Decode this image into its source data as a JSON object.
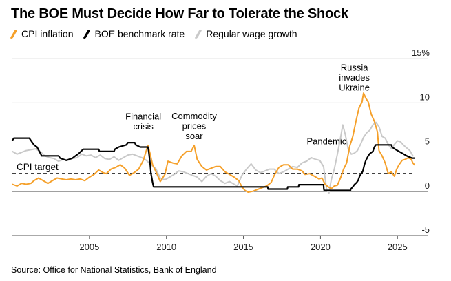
{
  "title": "The BOE Must Decide How Far to Tolerate the Shock",
  "source": "Source: Office for National Statistics, Bank of England",
  "colors": {
    "cpi": "#f5a02a",
    "boe": "#000000",
    "wage": "#c9c9c9",
    "grid": "#e3e3e3"
  },
  "chart_data": {
    "type": "line",
    "title": "The BOE Must Decide How Far to Tolerate the Shock",
    "xlabel": "",
    "ylabel": "",
    "xlim": [
      2000.0,
      2027.0
    ],
    "ylim": [
      -5,
      15
    ],
    "x_ticks": [
      {
        "value": 2005,
        "label": "2005"
      },
      {
        "value": 2010,
        "label": "2010"
      },
      {
        "value": 2015,
        "label": "2015"
      },
      {
        "value": 2020,
        "label": "2020"
      },
      {
        "value": 2025,
        "label": "2025"
      }
    ],
    "y_ticks": [
      {
        "value": 15,
        "label": "15%"
      },
      {
        "value": 10,
        "label": "10"
      },
      {
        "value": 5,
        "label": "5"
      },
      {
        "value": 0,
        "label": "0"
      },
      {
        "value": -5,
        "label": "-5"
      }
    ],
    "legend_position": "top-left",
    "cpi_target": {
      "value": 2,
      "label": "CPI target"
    },
    "annotations": [
      {
        "id": "financial-crisis",
        "lines": [
          "Financial",
          "crisis"
        ],
        "x": 2008.5,
        "y": 7.0
      },
      {
        "id": "commodity-prices",
        "lines": [
          "Commodity",
          "prices",
          "soar"
        ],
        "x": 2011.8,
        "y": 5.9
      },
      {
        "id": "pandemic",
        "lines": [
          "Pandemic"
        ],
        "x": 2020.4,
        "y": 5.3
      },
      {
        "id": "russia-ukraine",
        "lines": [
          "Russia",
          "invades",
          "Ukraine"
        ],
        "x": 2022.2,
        "y": 11.4
      }
    ],
    "series": [
      {
        "name": "CPI inflation",
        "color": "#f5a02a",
        "points": [
          [
            2000.0,
            0.8
          ],
          [
            2000.3,
            0.6
          ],
          [
            2000.6,
            0.9
          ],
          [
            2000.9,
            0.8
          ],
          [
            2001.2,
            0.9
          ],
          [
            2001.4,
            1.2
          ],
          [
            2001.7,
            1.5
          ],
          [
            2002.0,
            1.2
          ],
          [
            2002.3,
            0.9
          ],
          [
            2002.6,
            1.2
          ],
          [
            2002.9,
            1.5
          ],
          [
            2003.2,
            1.4
          ],
          [
            2003.5,
            1.3
          ],
          [
            2003.8,
            1.4
          ],
          [
            2004.1,
            1.3
          ],
          [
            2004.4,
            1.4
          ],
          [
            2004.7,
            1.2
          ],
          [
            2005.0,
            1.6
          ],
          [
            2005.3,
            1.9
          ],
          [
            2005.6,
            2.4
          ],
          [
            2005.9,
            2.1
          ],
          [
            2006.1,
            2.0
          ],
          [
            2006.4,
            2.5
          ],
          [
            2006.7,
            2.7
          ],
          [
            2007.0,
            3.0
          ],
          [
            2007.3,
            2.6
          ],
          [
            2007.6,
            1.8
          ],
          [
            2007.9,
            2.1
          ],
          [
            2008.2,
            2.5
          ],
          [
            2008.5,
            3.5
          ],
          [
            2008.8,
            5.2
          ],
          [
            2008.95,
            4.2
          ],
          [
            2009.1,
            3.0
          ],
          [
            2009.3,
            2.3
          ],
          [
            2009.6,
            1.1
          ],
          [
            2009.9,
            1.9
          ],
          [
            2010.1,
            3.4
          ],
          [
            2010.4,
            3.2
          ],
          [
            2010.7,
            3.1
          ],
          [
            2011.0,
            4.0
          ],
          [
            2011.3,
            4.5
          ],
          [
            2011.6,
            4.5
          ],
          [
            2011.8,
            5.2
          ],
          [
            2012.0,
            3.6
          ],
          [
            2012.3,
            2.8
          ],
          [
            2012.6,
            2.4
          ],
          [
            2012.9,
            2.6
          ],
          [
            2013.2,
            2.8
          ],
          [
            2013.5,
            2.8
          ],
          [
            2013.8,
            2.2
          ],
          [
            2014.1,
            1.9
          ],
          [
            2014.4,
            1.6
          ],
          [
            2014.7,
            1.2
          ],
          [
            2014.9,
            0.5
          ],
          [
            2015.1,
            0.1
          ],
          [
            2015.3,
            -0.1
          ],
          [
            2015.6,
            0.0
          ],
          [
            2015.9,
            0.2
          ],
          [
            2016.2,
            0.4
          ],
          [
            2016.5,
            0.6
          ],
          [
            2016.8,
            1.0
          ],
          [
            2017.0,
            1.8
          ],
          [
            2017.3,
            2.7
          ],
          [
            2017.6,
            3.0
          ],
          [
            2017.9,
            3.0
          ],
          [
            2018.2,
            2.5
          ],
          [
            2018.5,
            2.5
          ],
          [
            2018.8,
            2.3
          ],
          [
            2019.0,
            1.9
          ],
          [
            2019.3,
            2.0
          ],
          [
            2019.6,
            1.7
          ],
          [
            2019.9,
            1.4
          ],
          [
            2020.1,
            1.5
          ],
          [
            2020.3,
            0.8
          ],
          [
            2020.5,
            0.5
          ],
          [
            2020.7,
            0.3
          ],
          [
            2020.9,
            0.6
          ],
          [
            2021.1,
            0.7
          ],
          [
            2021.3,
            1.5
          ],
          [
            2021.5,
            2.5
          ],
          [
            2021.7,
            3.2
          ],
          [
            2021.9,
            5.1
          ],
          [
            2022.1,
            6.2
          ],
          [
            2022.3,
            7.9
          ],
          [
            2022.5,
            9.4
          ],
          [
            2022.7,
            10.1
          ],
          [
            2022.8,
            11.1
          ],
          [
            2022.95,
            10.5
          ],
          [
            2023.1,
            10.1
          ],
          [
            2023.3,
            8.7
          ],
          [
            2023.5,
            7.9
          ],
          [
            2023.7,
            6.7
          ],
          [
            2023.8,
            4.6
          ],
          [
            2024.0,
            4.0
          ],
          [
            2024.2,
            3.2
          ],
          [
            2024.4,
            2.0
          ],
          [
            2024.6,
            2.2
          ],
          [
            2024.8,
            1.7
          ],
          [
            2024.95,
            2.5
          ],
          [
            2025.1,
            3.0
          ],
          [
            2025.3,
            3.5
          ],
          [
            2025.5,
            3.6
          ],
          [
            2025.7,
            3.8
          ],
          [
            2025.9,
            3.6
          ],
          [
            2026.0,
            3.2
          ],
          [
            2026.1,
            3.0
          ]
        ]
      },
      {
        "name": "BOE benchmark rate",
        "color": "#000000",
        "points": [
          [
            2000.0,
            5.75
          ],
          [
            2000.1,
            6.0
          ],
          [
            2001.1,
            6.0
          ],
          [
            2001.2,
            5.75
          ],
          [
            2001.4,
            5.25
          ],
          [
            2001.6,
            5.0
          ],
          [
            2001.9,
            4.0
          ],
          [
            2003.0,
            4.0
          ],
          [
            2003.1,
            3.75
          ],
          [
            2003.5,
            3.5
          ],
          [
            2003.9,
            3.75
          ],
          [
            2004.1,
            4.0
          ],
          [
            2004.3,
            4.25
          ],
          [
            2004.45,
            4.5
          ],
          [
            2004.6,
            4.75
          ],
          [
            2005.6,
            4.75
          ],
          [
            2005.65,
            4.5
          ],
          [
            2006.6,
            4.5
          ],
          [
            2006.65,
            4.75
          ],
          [
            2006.9,
            5.0
          ],
          [
            2007.4,
            5.25
          ],
          [
            2007.5,
            5.5
          ],
          [
            2007.95,
            5.5
          ],
          [
            2008.0,
            5.25
          ],
          [
            2008.3,
            5.0
          ],
          [
            2008.8,
            5.0
          ],
          [
            2008.85,
            4.5
          ],
          [
            2008.95,
            3.0
          ],
          [
            2009.0,
            2.0
          ],
          [
            2009.05,
            1.5
          ],
          [
            2009.1,
            1.0
          ],
          [
            2009.17,
            0.5
          ],
          [
            2016.58,
            0.5
          ],
          [
            2016.6,
            0.25
          ],
          [
            2017.85,
            0.25
          ],
          [
            2017.87,
            0.5
          ],
          [
            2018.58,
            0.5
          ],
          [
            2018.6,
            0.75
          ],
          [
            2020.2,
            0.75
          ],
          [
            2020.22,
            0.25
          ],
          [
            2020.24,
            0.1
          ],
          [
            2021.95,
            0.1
          ],
          [
            2021.97,
            0.25
          ],
          [
            2022.1,
            0.5
          ],
          [
            2022.2,
            0.75
          ],
          [
            2022.35,
            1.0
          ],
          [
            2022.45,
            1.25
          ],
          [
            2022.55,
            1.75
          ],
          [
            2022.75,
            2.25
          ],
          [
            2022.85,
            3.0
          ],
          [
            2022.95,
            3.5
          ],
          [
            2023.1,
            4.0
          ],
          [
            2023.2,
            4.25
          ],
          [
            2023.4,
            4.5
          ],
          [
            2023.5,
            5.0
          ],
          [
            2023.6,
            5.25
          ],
          [
            2024.6,
            5.25
          ],
          [
            2024.65,
            5.0
          ],
          [
            2024.85,
            4.75
          ],
          [
            2025.1,
            4.5
          ],
          [
            2025.35,
            4.25
          ],
          [
            2025.6,
            4.0
          ],
          [
            2025.95,
            3.75
          ],
          [
            2026.1,
            3.75
          ]
        ]
      },
      {
        "name": "Regular wage growth",
        "color": "#c9c9c9",
        "points": [
          [
            2000.0,
            4.5
          ],
          [
            2000.3,
            4.2
          ],
          [
            2000.6,
            4.4
          ],
          [
            2000.9,
            4.6
          ],
          [
            2001.2,
            4.7
          ],
          [
            2001.5,
            4.8
          ],
          [
            2001.8,
            4.5
          ],
          [
            2002.1,
            4.0
          ],
          [
            2002.4,
            3.8
          ],
          [
            2002.7,
            3.7
          ],
          [
            2003.0,
            3.4
          ],
          [
            2003.3,
            3.6
          ],
          [
            2003.6,
            3.5
          ],
          [
            2003.9,
            3.7
          ],
          [
            2004.2,
            3.8
          ],
          [
            2004.5,
            4.2
          ],
          [
            2004.8,
            4.0
          ],
          [
            2005.1,
            4.1
          ],
          [
            2005.4,
            3.8
          ],
          [
            2005.7,
            4.1
          ],
          [
            2006.0,
            3.7
          ],
          [
            2006.3,
            3.6
          ],
          [
            2006.6,
            3.9
          ],
          [
            2006.9,
            3.5
          ],
          [
            2007.2,
            3.8
          ],
          [
            2007.5,
            4.1
          ],
          [
            2007.8,
            4.2
          ],
          [
            2008.1,
            4.0
          ],
          [
            2008.4,
            3.8
          ],
          [
            2008.7,
            3.5
          ],
          [
            2009.0,
            3.0
          ],
          [
            2009.3,
            2.6
          ],
          [
            2009.6,
            1.5
          ],
          [
            2009.9,
            1.3
          ],
          [
            2010.2,
            1.6
          ],
          [
            2010.5,
            1.9
          ],
          [
            2010.8,
            2.3
          ],
          [
            2011.1,
            2.2
          ],
          [
            2011.4,
            2.0
          ],
          [
            2011.7,
            1.8
          ],
          [
            2012.0,
            1.6
          ],
          [
            2012.3,
            1.1
          ],
          [
            2012.6,
            1.7
          ],
          [
            2012.9,
            2.0
          ],
          [
            2013.2,
            1.7
          ],
          [
            2013.5,
            1.2
          ],
          [
            2013.8,
            0.9
          ],
          [
            2014.1,
            1.1
          ],
          [
            2014.4,
            0.8
          ],
          [
            2014.6,
            0.6
          ],
          [
            2014.9,
            1.8
          ],
          [
            2015.2,
            2.5
          ],
          [
            2015.5,
            3.1
          ],
          [
            2015.8,
            2.4
          ],
          [
            2016.1,
            2.1
          ],
          [
            2016.4,
            2.3
          ],
          [
            2016.7,
            2.5
          ],
          [
            2017.0,
            2.5
          ],
          [
            2017.3,
            2.0
          ],
          [
            2017.6,
            2.2
          ],
          [
            2017.9,
            2.5
          ],
          [
            2018.2,
            2.8
          ],
          [
            2018.5,
            2.7
          ],
          [
            2018.8,
            3.2
          ],
          [
            2019.1,
            3.4
          ],
          [
            2019.4,
            3.8
          ],
          [
            2019.7,
            3.6
          ],
          [
            2019.95,
            3.5
          ],
          [
            2020.2,
            2.8
          ],
          [
            2020.4,
            0.2
          ],
          [
            2020.55,
            -0.2
          ],
          [
            2020.7,
            1.3
          ],
          [
            2020.9,
            2.5
          ],
          [
            2021.1,
            4.2
          ],
          [
            2021.3,
            6.0
          ],
          [
            2021.45,
            7.5
          ],
          [
            2021.6,
            6.5
          ],
          [
            2021.8,
            4.8
          ],
          [
            2022.0,
            4.2
          ],
          [
            2022.2,
            4.3
          ],
          [
            2022.4,
            4.6
          ],
          [
            2022.6,
            5.3
          ],
          [
            2022.8,
            6.1
          ],
          [
            2023.0,
            6.6
          ],
          [
            2023.2,
            6.9
          ],
          [
            2023.4,
            7.5
          ],
          [
            2023.6,
            7.8
          ],
          [
            2023.8,
            7.3
          ],
          [
            2024.0,
            6.2
          ],
          [
            2024.2,
            6.0
          ],
          [
            2024.4,
            5.3
          ],
          [
            2024.6,
            4.8
          ],
          [
            2024.8,
            5.3
          ],
          [
            2025.0,
            5.7
          ],
          [
            2025.2,
            5.6
          ],
          [
            2025.4,
            5.2
          ],
          [
            2025.6,
            4.9
          ],
          [
            2025.8,
            4.6
          ],
          [
            2026.0,
            4.0
          ]
        ]
      }
    ]
  }
}
